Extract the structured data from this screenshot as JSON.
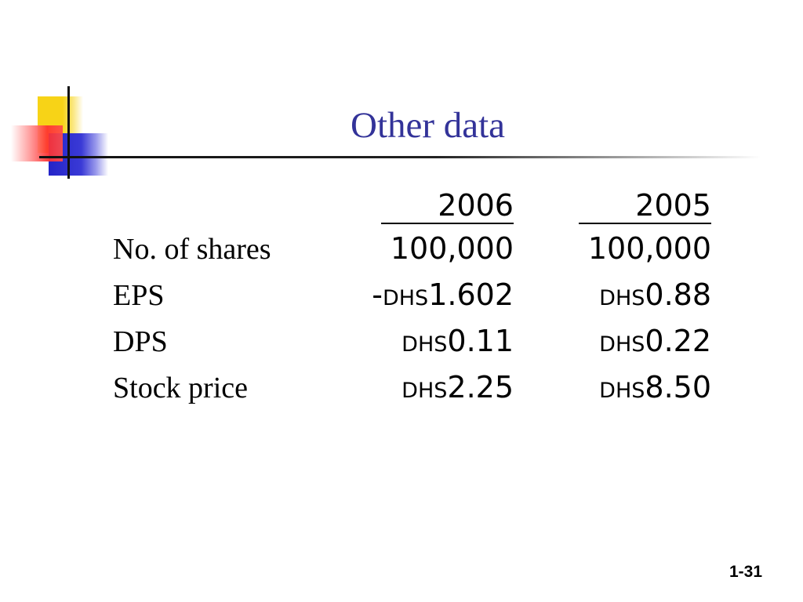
{
  "slide": {
    "title": "Other data",
    "page_number": "1-31"
  },
  "table": {
    "years": [
      "2006",
      "2005"
    ],
    "rows": [
      {
        "label": "No. of shares",
        "values": [
          {
            "prefix": "",
            "currency": "",
            "amount": "100,000"
          },
          {
            "prefix": "",
            "currency": "",
            "amount": "100,000"
          }
        ]
      },
      {
        "label": "EPS",
        "values": [
          {
            "prefix": "-",
            "currency": "DHS",
            "amount": "1.602"
          },
          {
            "prefix": "",
            "currency": "DHS",
            "amount": "0.88"
          }
        ]
      },
      {
        "label": "DPS",
        "values": [
          {
            "prefix": "",
            "currency": "DHS",
            "amount": "0.11"
          },
          {
            "prefix": "",
            "currency": "DHS",
            "amount": "0.22"
          }
        ]
      },
      {
        "label": "Stock price",
        "values": [
          {
            "prefix": "",
            "currency": "DHS",
            "amount": "2.25"
          },
          {
            "prefix": "",
            "currency": "DHS",
            "amount": "8.50"
          }
        ]
      }
    ]
  },
  "colors": {
    "title": "#333399",
    "deco_yellow": "#f7d317",
    "deco_blue": "#2424c8",
    "deco_red": "#ff3030"
  }
}
